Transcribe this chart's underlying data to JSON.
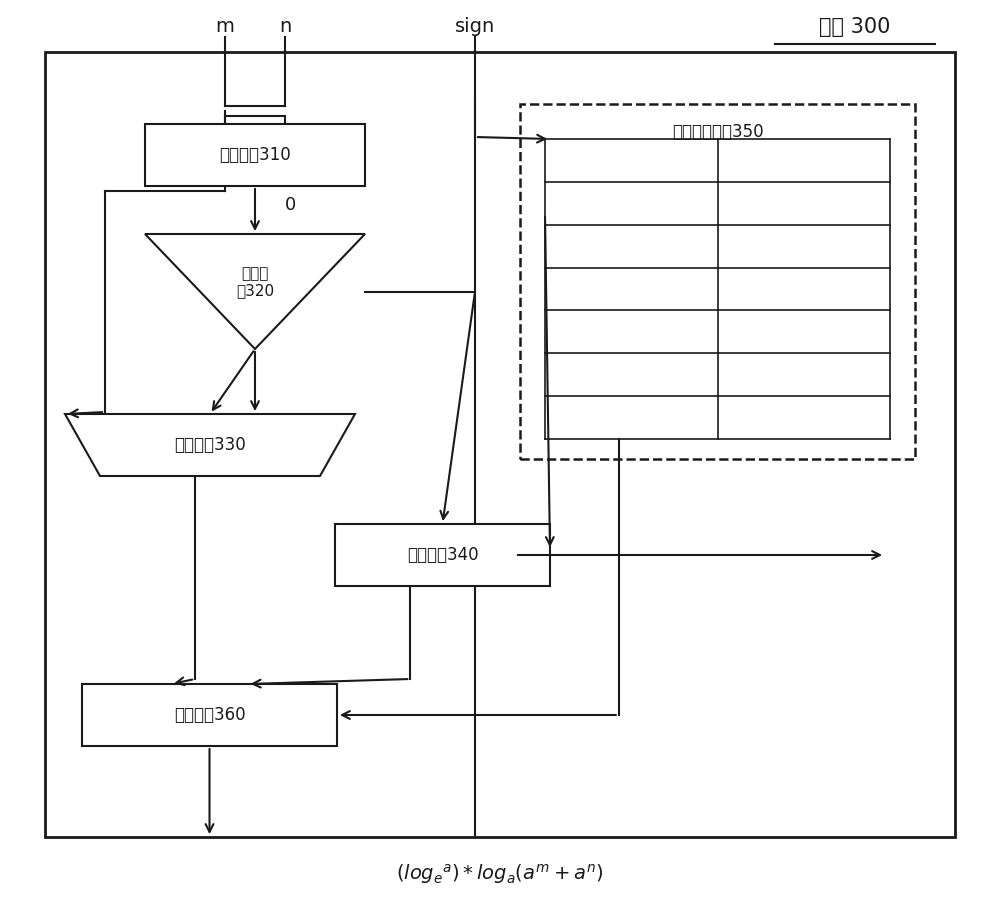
{
  "title": "装置 300",
  "label_m": "m",
  "label_n": "n",
  "label_sign": "sign",
  "box310_text": "减法电路310",
  "box320_text": "比较电\n路320",
  "box330_text": "选择电路330",
  "box340_text": "移位电路340",
  "box350_text": "误差补偿电路350",
  "box360_text": "加法电路360",
  "label_0": "0",
  "bg_color": "#ffffff",
  "box_color": "#ffffff",
  "line_color": "#1a1a1a",
  "fig_width": 10.0,
  "fig_height": 9.09,
  "xlim": [
    0,
    10
  ],
  "ylim": [
    0,
    9.09
  ]
}
